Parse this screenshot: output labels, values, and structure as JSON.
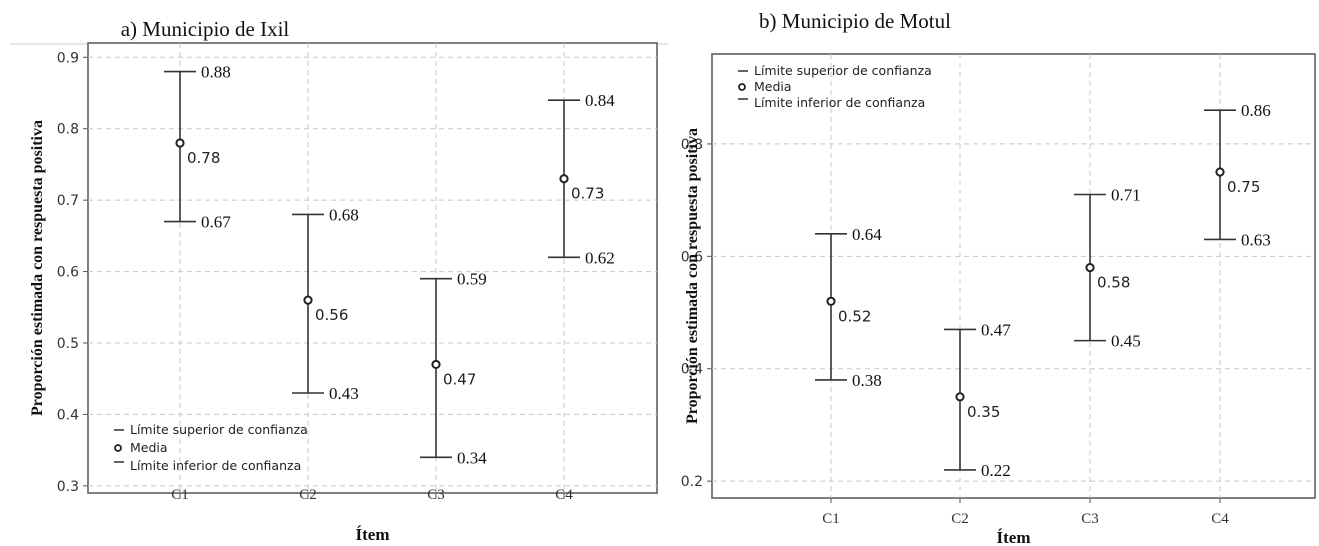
{
  "chart_data": [
    {
      "type": "errorbar",
      "title": "a) Municipio de Ixil",
      "xlabel": "Ítem",
      "ylabel": "Proporción estimada con respuesta positiva",
      "categories": [
        "C1",
        "C2",
        "C3",
        "C4"
      ],
      "yticks": [
        "0.3",
        "0.4",
        "0.5",
        "0.6",
        "0.7",
        "0.8",
        "0.9"
      ],
      "ylim": [
        0.29,
        0.92
      ],
      "grid": true,
      "legend_position": "bottom-left",
      "legend": [
        "Límite superior de confianza",
        "Media",
        "Límite inferior de confianza"
      ],
      "mean": [
        0.78,
        0.56,
        0.47,
        0.73
      ],
      "upper": [
        0.88,
        0.68,
        0.59,
        0.84
      ],
      "lower": [
        0.67,
        0.43,
        0.34,
        0.62
      ],
      "mean_labels": [
        "0.78",
        "0.56",
        "0.47",
        "0.73"
      ],
      "upper_labels": [
        "0.88",
        "0.68",
        "0.59",
        "0.84"
      ],
      "lower_labels": [
        "0.67",
        "0.43",
        "0.34",
        "0.62"
      ]
    },
    {
      "type": "errorbar",
      "title": "b) Municipio de Motul",
      "xlabel": "Ítem",
      "ylabel": "Proporción estimada con respuesta positiva",
      "categories": [
        "C1",
        "C2",
        "C3",
        "C4"
      ],
      "yticks": [
        "0.2",
        "0.4",
        "0.6",
        "0.8"
      ],
      "ylim": [
        0.17,
        0.96
      ],
      "grid": true,
      "legend_position": "top-left",
      "legend": [
        "Límite superior de confianza",
        "Media",
        "Límite inferior de confianza"
      ],
      "mean": [
        0.52,
        0.35,
        0.58,
        0.75
      ],
      "upper": [
        0.64,
        0.47,
        0.71,
        0.86
      ],
      "lower": [
        0.38,
        0.22,
        0.45,
        0.63
      ],
      "mean_labels": [
        "0.52",
        "0.35",
        "0.58",
        "0.75"
      ],
      "upper_labels": [
        "0.64",
        "0.47",
        "0.71",
        "0.86"
      ],
      "lower_labels": [
        "0.38",
        "0.22",
        "0.45",
        "0.63"
      ]
    }
  ]
}
